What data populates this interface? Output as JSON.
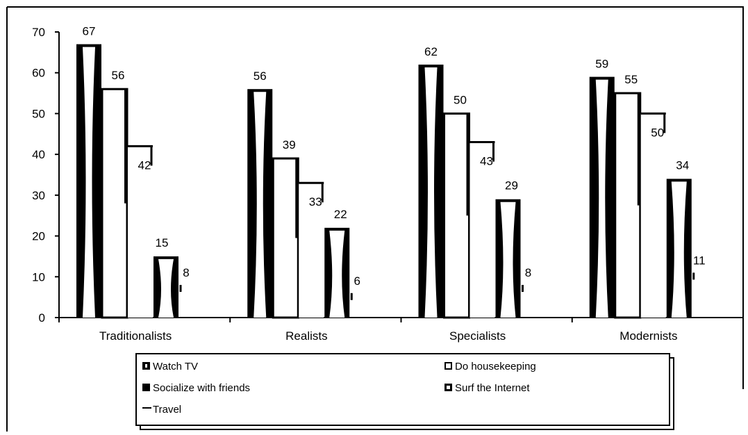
{
  "chart_data": {
    "type": "bar",
    "title": "",
    "xlabel": "",
    "ylabel": "",
    "ylim": [
      0,
      70
    ],
    "yticks": [
      0,
      10,
      20,
      30,
      40,
      50,
      60,
      70
    ],
    "categories": [
      "Traditionalists",
      "Realists",
      "Specialists",
      "Modernists"
    ],
    "series": [
      {
        "name": "Watch TV",
        "values": [
          67,
          56,
          62,
          59
        ],
        "pattern": "watch-tv"
      },
      {
        "name": "Do housekeeping",
        "values": [
          56,
          39,
          50,
          55
        ],
        "pattern": "housekeeping"
      },
      {
        "name": "Socialize with friends",
        "values": [
          42,
          33,
          43,
          50
        ],
        "pattern": "socialize"
      },
      {
        "name": "Surf the Internet",
        "values": [
          15,
          22,
          29,
          34
        ],
        "pattern": "internet"
      },
      {
        "name": "Travel",
        "values": [
          8,
          6,
          8,
          11
        ],
        "pattern": "travel"
      }
    ],
    "legend_position": "bottom",
    "grid": false,
    "colors": {
      "stroke": "#000000",
      "fill": "#ffffff"
    }
  }
}
